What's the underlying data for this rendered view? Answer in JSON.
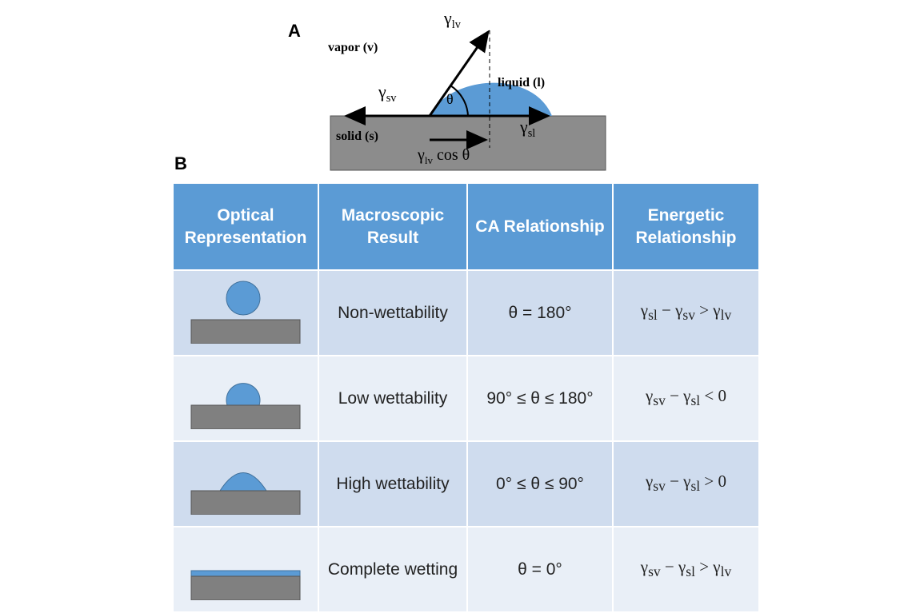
{
  "panel_a": {
    "label": "A",
    "vapor": "vapor (v)",
    "liquid": "liquid (l)",
    "solid": "solid (s)",
    "theta": "θ",
    "gamma_lv": [
      "γ",
      "lv"
    ],
    "gamma_sv": [
      "γ",
      "sv"
    ],
    "gamma_sl": [
      "γ",
      "sl"
    ],
    "projection": [
      "γ",
      "lv",
      " cos θ"
    ]
  },
  "panel_b": {
    "label": "B",
    "table": {
      "header": [
        "Optical Representation",
        "Macroscopic Result",
        "CA Relationship",
        "Energetic Relationship"
      ],
      "rows": [
        [
          "Non-wettability",
          "θ = 180°",
          [
            "γ",
            "sl",
            " − γ",
            "sv",
            " > γ",
            "lv"
          ]
        ],
        [
          "Low wettability",
          "90° ≤ θ ≤ 180°",
          [
            "γ",
            "sv",
            " − γ",
            "sl",
            " < 0"
          ]
        ],
        [
          "High wettability",
          "0° ≤ θ ≤ 90°",
          [
            "γ",
            "sv",
            " − γ",
            "sl",
            " > 0"
          ]
        ],
        [
          "Complete wetting",
          "θ = 0°",
          [
            "γ",
            "sv",
            " − γ",
            "sl",
            " > γ",
            "lv"
          ]
        ]
      ]
    }
  }
}
